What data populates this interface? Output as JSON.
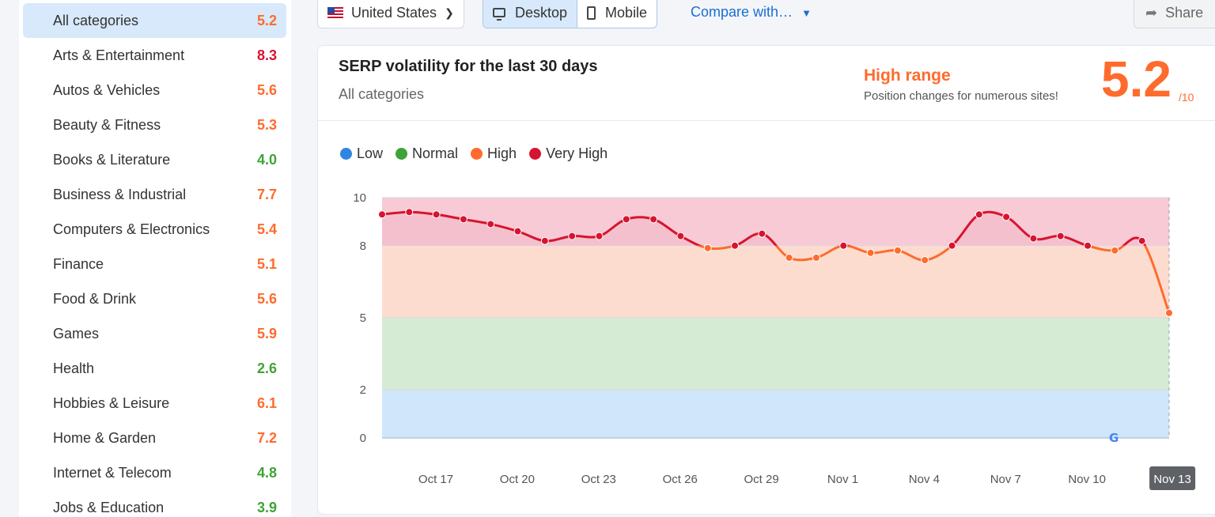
{
  "sidebar": {
    "items": [
      {
        "label": "All categories",
        "value": "5.2",
        "color": "#ff6b2c",
        "active": true
      },
      {
        "label": "Arts & Entertainment",
        "value": "8.3",
        "color": "#d7142f"
      },
      {
        "label": "Autos & Vehicles",
        "value": "5.6",
        "color": "#ff6b2c"
      },
      {
        "label": "Beauty & Fitness",
        "value": "5.3",
        "color": "#ff6b2c"
      },
      {
        "label": "Books & Literature",
        "value": "4.0",
        "color": "#3fa337"
      },
      {
        "label": "Business & Industrial",
        "value": "7.7",
        "color": "#ff6b2c"
      },
      {
        "label": "Computers & Electronics",
        "value": "5.4",
        "color": "#ff6b2c"
      },
      {
        "label": "Finance",
        "value": "5.1",
        "color": "#ff6b2c"
      },
      {
        "label": "Food & Drink",
        "value": "5.6",
        "color": "#ff6b2c"
      },
      {
        "label": "Games",
        "value": "5.9",
        "color": "#ff6b2c"
      },
      {
        "label": "Health",
        "value": "2.6",
        "color": "#3fa337"
      },
      {
        "label": "Hobbies & Leisure",
        "value": "6.1",
        "color": "#ff6b2c"
      },
      {
        "label": "Home & Garden",
        "value": "7.2",
        "color": "#ff6b2c"
      },
      {
        "label": "Internet & Telecom",
        "value": "4.8",
        "color": "#3fa337"
      },
      {
        "label": "Jobs & Education",
        "value": "3.9",
        "color": "#3fa337"
      }
    ]
  },
  "toolbar": {
    "country": "United States",
    "desktop_label": "Desktop",
    "mobile_label": "Mobile",
    "compare_label": "Compare with…",
    "share_label": "Share"
  },
  "card": {
    "title": "SERP volatility for the last 30 days",
    "subtitle": "All categories",
    "range_title": "High range",
    "range_desc": "Position changes for numerous sites!",
    "score": "5.2",
    "score_max": "/10"
  },
  "legend": [
    {
      "label": "Low",
      "color": "#2f86e0"
    },
    {
      "label": "Normal",
      "color": "#3fa337"
    },
    {
      "label": "High",
      "color": "#ff6b2c"
    },
    {
      "label": "Very High",
      "color": "#d7142f"
    }
  ],
  "chart_data": {
    "type": "line",
    "ylim": [
      0,
      10
    ],
    "y_ticks": [
      0,
      2,
      5,
      8,
      10
    ],
    "x_labels": [
      "Oct 17",
      "Oct 20",
      "Oct 23",
      "Oct 26",
      "Oct 29",
      "Nov 1",
      "Nov 4",
      "Nov 7",
      "Nov 10",
      "Nov 13"
    ],
    "highlighted_label": "Nov 13",
    "bands": [
      {
        "name": "Low",
        "from": 0,
        "to": 2,
        "color": "#cfe6fb"
      },
      {
        "name": "Normal",
        "from": 2,
        "to": 5,
        "color": "#d6ebd3"
      },
      {
        "name": "High",
        "from": 5,
        "to": 8,
        "color": "#fddcd0"
      },
      {
        "name": "Very High",
        "from": 8,
        "to": 10,
        "color": "#f7cad5"
      }
    ],
    "series": [
      {
        "values": [
          9.3,
          9.4,
          9.3,
          9.1,
          8.9,
          8.6,
          8.2,
          8.4,
          8.4,
          9.1,
          9.1,
          8.4,
          7.9,
          8.0,
          8.5,
          7.5,
          7.5,
          8.0,
          7.7,
          7.8,
          7.4,
          8.0,
          9.3,
          9.2,
          8.3,
          8.4,
          8.0,
          7.8,
          8.2,
          5.2
        ]
      }
    ]
  }
}
